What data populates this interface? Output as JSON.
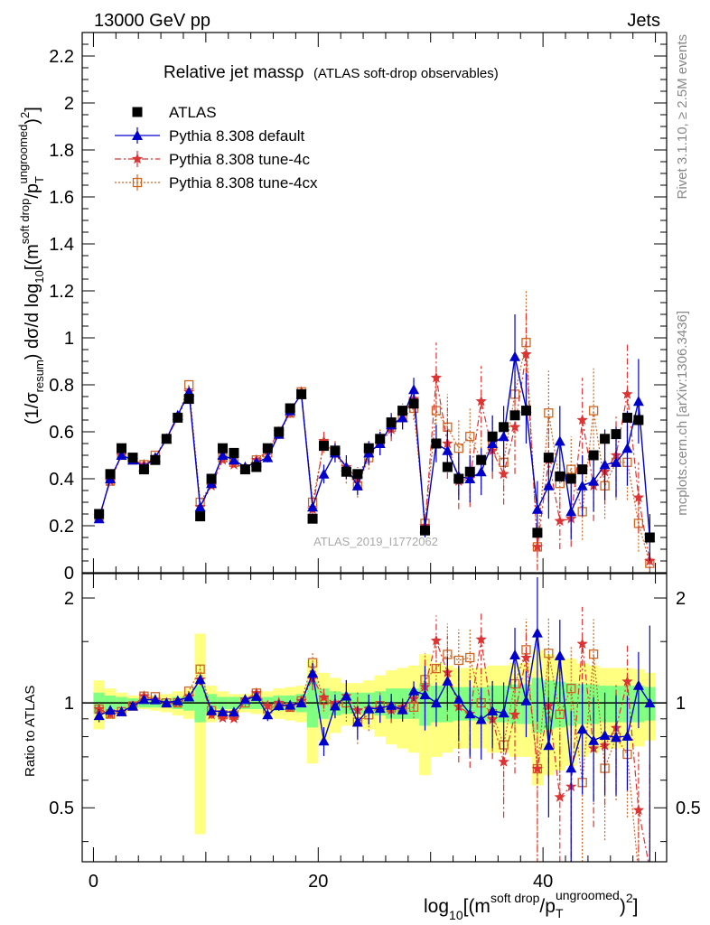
{
  "header": {
    "left": "13000 GeV pp",
    "right": "Jets"
  },
  "side": {
    "rivet": "Rivet 3.1.10, ≥ 2.5M events",
    "mcplots": "mcplots.cern.ch [arXiv:1306.3436]"
  },
  "plot": {
    "title_main": "Relative jet massρ",
    "title_sub": "(ATLAS soft-drop observables)",
    "analysis": "ATLAS_2019_I1772062",
    "ratio_ylabel": "Ratio to ATLAS"
  },
  "legend": [
    {
      "label": "ATLAS",
      "color": "#000000",
      "marker": "square"
    },
    {
      "label": "Pythia 8.308 default",
      "color": "#0000cc",
      "marker": "triangle"
    },
    {
      "label": "Pythia 8.308 tune-4c",
      "color": "#dd3333",
      "marker": "star"
    },
    {
      "label": "Pythia 8.308 tune-4cx",
      "color": "#cc6622",
      "marker": "opensquare"
    }
  ],
  "chart_data": {
    "type": "scatter",
    "title": "Relative jet massρ (ATLAS soft-drop observables)",
    "xlabel": "log10[(m^{soft drop}/p_T^{ungroomed})^2]",
    "ylabel": "(1/σ_resum) dσ/d log10[(m^{soft drop}/p_T^{ungroomed})^2]",
    "xlim": [
      -1,
      51
    ],
    "ylim": [
      0,
      2.3
    ],
    "ratio_ylim": [
      0.35,
      2.35
    ],
    "ratio_scale": "log",
    "grid": false,
    "legend_position": "top-left",
    "x_ticks": [
      0,
      20,
      40
    ],
    "y_ticks": [
      0,
      0.2,
      0.4,
      0.6,
      0.8,
      1,
      1.2,
      1.4,
      1.6,
      1.8,
      2,
      2.2
    ],
    "ratio_ticks": [
      0.5,
      1,
      2
    ],
    "x": [
      0.5,
      1.5,
      2.5,
      3.5,
      4.5,
      5.5,
      6.5,
      7.5,
      8.5,
      9.5,
      10.5,
      11.5,
      12.5,
      13.5,
      14.5,
      15.5,
      16.5,
      17.5,
      18.5,
      19.5,
      20.5,
      21.5,
      22.5,
      23.5,
      24.5,
      25.5,
      26.5,
      27.5,
      28.5,
      29.5,
      30.5,
      31.5,
      32.5,
      33.5,
      34.5,
      35.5,
      36.5,
      37.5,
      38.5,
      39.5,
      40.5,
      41.5,
      42.5,
      43.5,
      44.5,
      45.5,
      46.5,
      47.5,
      48.5,
      49.5
    ],
    "series": [
      {
        "name": "ATLAS",
        "color": "#000000",
        "values": [
          0.25,
          0.42,
          0.53,
          0.49,
          0.44,
          0.48,
          0.57,
          0.66,
          0.74,
          0.24,
          0.4,
          0.53,
          0.51,
          0.44,
          0.45,
          0.53,
          0.6,
          0.7,
          0.76,
          0.23,
          0.54,
          0.52,
          0.43,
          0.42,
          0.53,
          0.57,
          0.64,
          0.69,
          0.72,
          0.18,
          0.55,
          0.45,
          0.4,
          0.43,
          0.48,
          0.58,
          0.62,
          0.67,
          0.69,
          0.17,
          0.49,
          0.41,
          0.4,
          0.44,
          0.5,
          0.57,
          0.59,
          0.66,
          0.65,
          0.15
        ],
        "band_total": [
          0.16,
          0.1,
          0.07,
          0.05,
          0.04,
          0.05,
          0.06,
          0.08,
          0.1,
          0.58,
          0.12,
          0.08,
          0.06,
          0.06,
          0.07,
          0.08,
          0.1,
          0.11,
          0.12,
          0.33,
          0.22,
          0.18,
          0.14,
          0.14,
          0.16,
          0.2,
          0.24,
          0.26,
          0.28,
          0.38,
          0.3,
          0.28,
          0.26,
          0.26,
          0.26,
          0.28,
          0.28,
          0.3,
          0.3,
          0.42,
          0.38,
          0.36,
          0.34,
          0.3,
          0.28,
          0.26,
          0.26,
          0.26,
          0.25,
          0.22
        ],
        "band_stat": [
          0.07,
          0.05,
          0.04,
          0.03,
          0.03,
          0.03,
          0.03,
          0.04,
          0.05,
          0.12,
          0.06,
          0.04,
          0.04,
          0.04,
          0.04,
          0.04,
          0.05,
          0.05,
          0.06,
          0.15,
          0.1,
          0.08,
          0.07,
          0.07,
          0.07,
          0.08,
          0.1,
          0.1,
          0.1,
          0.14,
          0.12,
          0.12,
          0.11,
          0.11,
          0.11,
          0.12,
          0.12,
          0.13,
          0.13,
          0.18,
          0.16,
          0.15,
          0.14,
          0.13,
          0.13,
          0.12,
          0.12,
          0.12,
          0.12,
          0.11
        ]
      },
      {
        "name": "Pythia 8.308 default",
        "color": "#0000cc",
        "values": [
          0.23,
          0.4,
          0.5,
          0.48,
          0.45,
          0.49,
          0.57,
          0.67,
          0.77,
          0.28,
          0.38,
          0.5,
          0.48,
          0.45,
          0.47,
          0.49,
          0.59,
          0.69,
          0.76,
          0.28,
          0.42,
          0.51,
          0.45,
          0.37,
          0.51,
          0.55,
          0.63,
          0.66,
          0.78,
          0.19,
          0.55,
          0.52,
          0.41,
          0.4,
          0.43,
          0.55,
          0.58,
          0.92,
          0.7,
          0.27,
          0.37,
          0.56,
          0.26,
          0.37,
          0.39,
          0.46,
          0.47,
          0.53,
          0.73,
          0.15
        ],
        "errors": [
          0.01,
          0.01,
          0.01,
          0.01,
          0.01,
          0.01,
          0.01,
          0.01,
          0.01,
          0.01,
          0.01,
          0.01,
          0.01,
          0.01,
          0.01,
          0.02,
          0.02,
          0.02,
          0.02,
          0.02,
          0.04,
          0.04,
          0.05,
          0.04,
          0.05,
          0.05,
          0.05,
          0.05,
          0.05,
          0.04,
          0.08,
          0.09,
          0.1,
          0.1,
          0.1,
          0.12,
          0.13,
          0.18,
          0.15,
          0.12,
          0.14,
          0.15,
          0.12,
          0.13,
          0.13,
          0.15,
          0.15,
          0.16,
          0.18,
          0.1
        ]
      },
      {
        "name": "Pythia 8.308 tune-4c",
        "color": "#dd3333",
        "values": [
          0.24,
          0.39,
          0.5,
          0.48,
          0.46,
          0.49,
          0.57,
          0.66,
          0.77,
          0.28,
          0.37,
          0.48,
          0.46,
          0.45,
          0.48,
          0.52,
          0.6,
          0.68,
          0.77,
          0.27,
          0.56,
          0.52,
          0.45,
          0.4,
          0.51,
          0.55,
          0.61,
          0.67,
          0.74,
          0.2,
          0.83,
          0.55,
          0.39,
          0.4,
          0.73,
          0.52,
          0.42,
          0.62,
          0.93,
          0.11,
          0.48,
          0.22,
          0.23,
          0.65,
          0.37,
          0.43,
          0.5,
          0.76,
          0.32,
          0.05
        ],
        "errors": [
          0.01,
          0.01,
          0.01,
          0.01,
          0.01,
          0.01,
          0.01,
          0.01,
          0.01,
          0.01,
          0.01,
          0.01,
          0.01,
          0.01,
          0.01,
          0.02,
          0.02,
          0.02,
          0.02,
          0.02,
          0.04,
          0.04,
          0.05,
          0.05,
          0.05,
          0.05,
          0.05,
          0.05,
          0.05,
          0.04,
          0.15,
          0.15,
          0.12,
          0.12,
          0.15,
          0.12,
          0.13,
          0.2,
          0.2,
          0.1,
          0.18,
          0.12,
          0.12,
          0.18,
          0.15,
          0.14,
          0.17,
          0.22,
          0.15,
          0.05
        ]
      },
      {
        "name": "Pythia 8.308 tune-4cx",
        "color": "#cc6622",
        "values": [
          0.24,
          0.39,
          0.5,
          0.48,
          0.46,
          0.5,
          0.57,
          0.66,
          0.8,
          0.3,
          0.38,
          0.49,
          0.47,
          0.44,
          0.48,
          0.51,
          0.59,
          0.68,
          0.77,
          0.3,
          0.55,
          0.51,
          0.43,
          0.37,
          0.49,
          0.56,
          0.62,
          0.66,
          0.7,
          0.21,
          0.69,
          0.62,
          0.53,
          0.58,
          0.48,
          0.54,
          0.47,
          0.76,
          0.98,
          0.11,
          0.68,
          0.38,
          0.44,
          0.26,
          0.69,
          0.37,
          0.47,
          0.47,
          0.21,
          0.04
        ],
        "errors": [
          0.01,
          0.01,
          0.01,
          0.01,
          0.01,
          0.01,
          0.01,
          0.01,
          0.01,
          0.01,
          0.01,
          0.01,
          0.01,
          0.01,
          0.01,
          0.02,
          0.02,
          0.02,
          0.02,
          0.02,
          0.04,
          0.04,
          0.05,
          0.05,
          0.05,
          0.05,
          0.05,
          0.05,
          0.05,
          0.04,
          0.15,
          0.14,
          0.12,
          0.12,
          0.12,
          0.13,
          0.14,
          0.2,
          0.22,
          0.08,
          0.18,
          0.14,
          0.14,
          0.12,
          0.18,
          0.14,
          0.16,
          0.16,
          0.12,
          0.04
        ]
      }
    ]
  }
}
